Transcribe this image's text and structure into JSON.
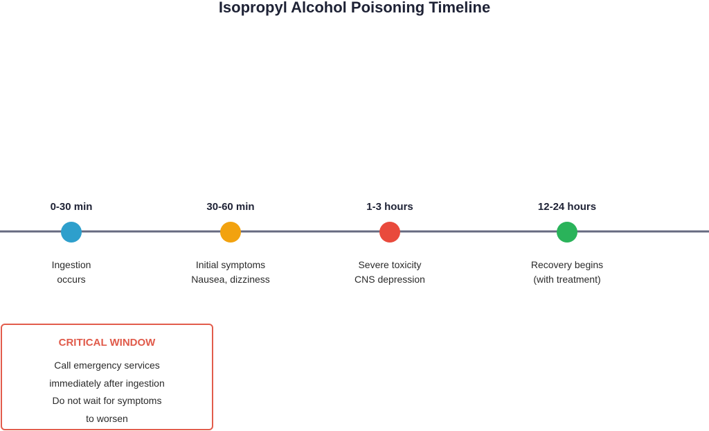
{
  "title": "Isopropyl Alcohol Poisoning Timeline",
  "colors": {
    "axis": "#666a80",
    "stage_1": "#2e9fcc",
    "stage_2": "#f2a20f",
    "stage_3": "#e94a3c",
    "stage_4": "#2ab35a",
    "critical": "#e05a4a"
  },
  "stages": [
    {
      "time": "0-30 min",
      "lines": [
        "Ingestion",
        "occurs"
      ],
      "color_key": "stage_1"
    },
    {
      "time": "30-60 min",
      "lines": [
        "Initial symptoms",
        "Nausea, dizziness"
      ],
      "color_key": "stage_2"
    },
    {
      "time": "1-3 hours",
      "lines": [
        "Severe toxicity",
        "CNS depression"
      ],
      "color_key": "stage_3"
    },
    {
      "time": "12-24 hours",
      "lines": [
        "Recovery begins",
        "(with treatment)"
      ],
      "color_key": "stage_4"
    }
  ],
  "critical": {
    "heading": "CRITICAL WINDOW",
    "lines": [
      "Call emergency services",
      "immediately after ingestion",
      "Do not wait for symptoms",
      "to worsen"
    ]
  }
}
